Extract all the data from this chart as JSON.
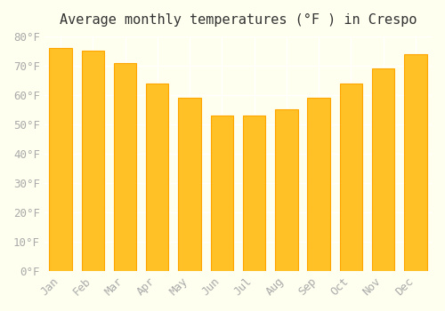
{
  "title": "Average monthly temperatures (°F ) in Crespo",
  "months": [
    "Jan",
    "Feb",
    "Mar",
    "Apr",
    "May",
    "Jun",
    "Jul",
    "Aug",
    "Sep",
    "Oct",
    "Nov",
    "Dec"
  ],
  "values": [
    76,
    75,
    71,
    64,
    59,
    53,
    53,
    55,
    59,
    64,
    69,
    74
  ],
  "bar_color_face": "#FFC125",
  "bar_color_edge": "#FFA500",
  "background_color": "#FFFFF0",
  "grid_color": "#FFFFFF",
  "ylim": [
    0,
    80
  ],
  "yticks": [
    0,
    10,
    20,
    30,
    40,
    50,
    60,
    70,
    80
  ],
  "title_fontsize": 11,
  "tick_fontsize": 9,
  "tick_label_color": "#AAAAAA"
}
